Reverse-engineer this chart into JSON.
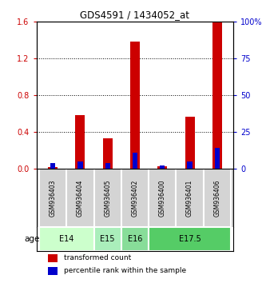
{
  "title": "GDS4591 / 1434052_at",
  "samples": [
    "GSM936403",
    "GSM936404",
    "GSM936405",
    "GSM936402",
    "GSM936400",
    "GSM936401",
    "GSM936406"
  ],
  "transformed_count": [
    0.02,
    0.58,
    0.33,
    1.38,
    0.03,
    0.56,
    1.6
  ],
  "percentile_rank": [
    4.0,
    5.0,
    4.0,
    11.0,
    2.0,
    5.0,
    14.0
  ],
  "left_ylim": [
    0,
    1.6
  ],
  "right_ylim": [
    0,
    100
  ],
  "left_yticks": [
    0,
    0.4,
    0.8,
    1.2,
    1.6
  ],
  "right_yticks": [
    0,
    25,
    50,
    75,
    100
  ],
  "right_yticklabels": [
    "0",
    "25",
    "50",
    "75",
    "100%"
  ],
  "bar_color_red": "#cc0000",
  "bar_color_blue": "#0000cc",
  "age_groups": [
    {
      "label": "E14",
      "samples": [
        0,
        1
      ],
      "color": "#ccffcc"
    },
    {
      "label": "E15",
      "samples": [
        2
      ],
      "color": "#aaeebb"
    },
    {
      "label": "E16",
      "samples": [
        3
      ],
      "color": "#88dd99"
    },
    {
      "label": "E17.5",
      "samples": [
        4,
        5,
        6
      ],
      "color": "#55cc66"
    }
  ],
  "age_row_label": "age",
  "legend_red_label": "transformed count",
  "legend_blue_label": "percentile rank within the sample",
  "bar_width": 0.35,
  "blue_bar_width": 0.18
}
